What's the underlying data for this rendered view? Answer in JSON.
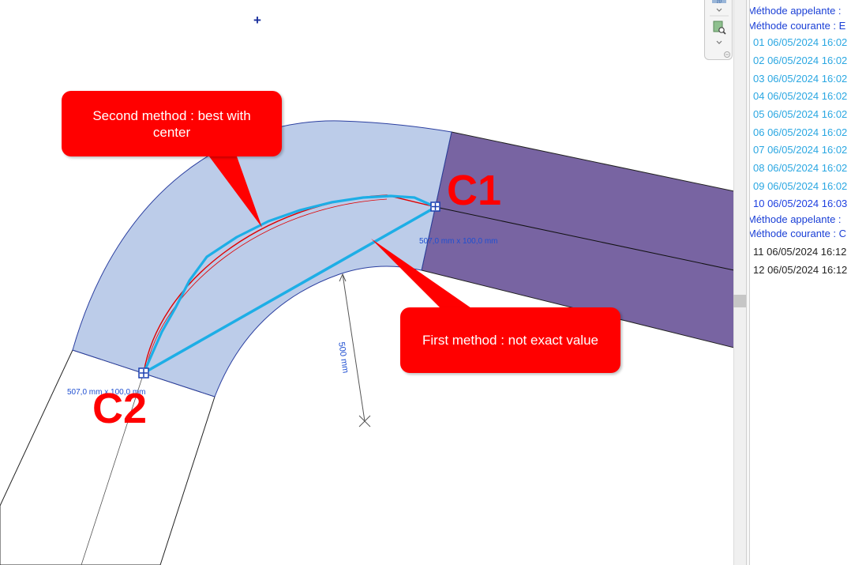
{
  "canvas": {
    "callouts": {
      "second": "Second method : best with center",
      "first": "First method : not exact value"
    },
    "labels": {
      "c1": "C1",
      "c2": "C2"
    },
    "dimensions": {
      "c1_section": "507,0 mm x 100,0 mm",
      "c2_section": "507,0 mm x 100,0 mm",
      "radius": "500 mm"
    },
    "marker": "+",
    "colors": {
      "duct_fill": "#bccce9",
      "duct_edge": "#2b3fa0",
      "purple_duct": "#7864a2",
      "cyan_line": "#1daee6",
      "red_line": "#e00000",
      "callout": "#ff0000"
    }
  },
  "toolbar": {
    "icons": [
      "2d-icon",
      "chevron-down-icon",
      "zoom-document-icon",
      "chevron-down-icon",
      "minus-circle-icon"
    ]
  },
  "log": {
    "lines": [
      {
        "text": "Méthode appelante :",
        "style": "method"
      },
      {
        "text": "Méthode courante : E",
        "style": "method"
      },
      {
        "text": "01 06/05/2024 16:02",
        "style": "cyan"
      },
      {
        "text": "02 06/05/2024 16:02",
        "style": "cyan"
      },
      {
        "text": "03 06/05/2024 16:02",
        "style": "cyan"
      },
      {
        "text": "04 06/05/2024 16:02",
        "style": "cyan"
      },
      {
        "text": "05 06/05/2024 16:02",
        "style": "cyan"
      },
      {
        "text": "06 06/05/2024 16:02",
        "style": "cyan"
      },
      {
        "text": "07 06/05/2024 16:02",
        "style": "cyan"
      },
      {
        "text": "08 06/05/2024 16:02",
        "style": "cyan"
      },
      {
        "text": "09 06/05/2024 16:02",
        "style": "cyan"
      },
      {
        "text": "10 06/05/2024 16:03",
        "style": "blue"
      },
      {
        "text": "Méthode appelante :",
        "style": "method"
      },
      {
        "text": "Méthode courante : C",
        "style": "method"
      },
      {
        "text": "11 06/05/2024 16:12",
        "style": "black"
      },
      {
        "text": "12 06/05/2024 16:12",
        "style": "black"
      }
    ]
  }
}
